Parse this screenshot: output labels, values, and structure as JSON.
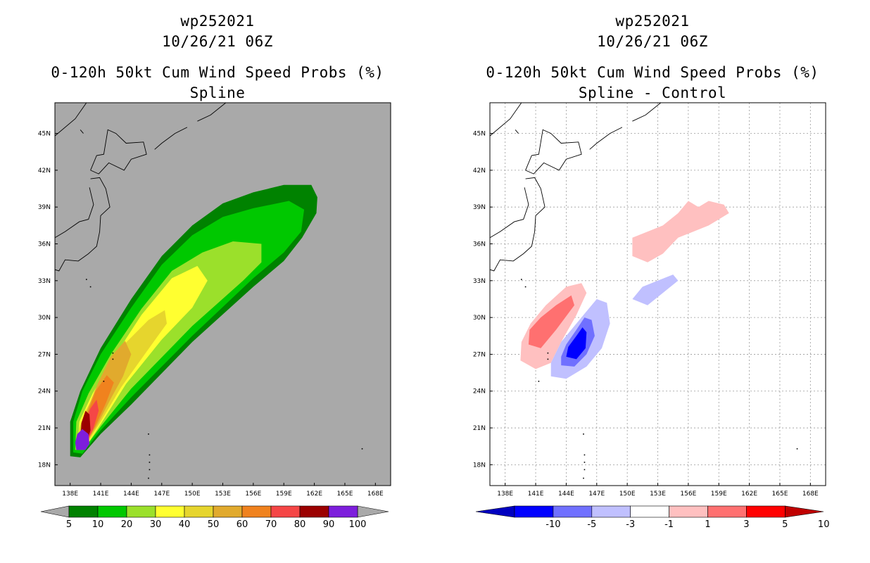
{
  "chart_data": [
    {
      "type": "heatmap",
      "storm_id": "wp252021",
      "datetime": "10/26/21 06Z",
      "title": "0-120h 50kt Cum Wind Speed Probs (%)",
      "subtitle": "Spline",
      "x_ticks": [
        "138E",
        "141E",
        "144E",
        "147E",
        "150E",
        "153E",
        "156E",
        "159E",
        "162E",
        "165E",
        "168E"
      ],
      "y_ticks": [
        "45N",
        "42N",
        "39N",
        "36N",
        "33N",
        "30N",
        "27N",
        "24N",
        "21N",
        "18N"
      ],
      "xlim": [
        136.5,
        169.5
      ],
      "ylim": [
        16.3,
        47.5
      ],
      "grid": false,
      "background": "#a9a9a9",
      "colorbar": {
        "labels": [
          "5",
          "10",
          "20",
          "30",
          "40",
          "50",
          "60",
          "70",
          "80",
          "90",
          "100"
        ],
        "colors": [
          "#008200",
          "#00c800",
          "#9be02b",
          "#ffff30",
          "#e6d52d",
          "#e1aa2d",
          "#f0821e",
          "#f54646",
          "#9b0000",
          "#7d1edc"
        ]
      },
      "levels": [
        {
          "threshold": 5,
          "color": "#008200",
          "points": [
            [
              138.0,
              18.7
            ],
            [
              139.0,
              18.6
            ],
            [
              141.0,
              20.5
            ],
            [
              144.0,
              22.9
            ],
            [
              150.0,
              28.0
            ],
            [
              156.0,
              32.5
            ],
            [
              159.0,
              34.6
            ],
            [
              160.8,
              36.5
            ],
            [
              162.2,
              38.5
            ],
            [
              162.3,
              39.8
            ],
            [
              161.7,
              40.8
            ],
            [
              159.0,
              40.8
            ],
            [
              156.0,
              40.2
            ],
            [
              153.0,
              39.3
            ],
            [
              150.0,
              37.5
            ],
            [
              147.0,
              35.0
            ],
            [
              144.0,
              31.5
            ],
            [
              141.0,
              27.5
            ],
            [
              139.0,
              24.0
            ],
            [
              138.0,
              21.5
            ]
          ]
        },
        {
          "threshold": 10,
          "color": "#00c800",
          "points": [
            [
              138.3,
              19.0
            ],
            [
              139.2,
              18.9
            ],
            [
              141.0,
              20.8
            ],
            [
              144.0,
              23.5
            ],
            [
              150.0,
              28.5
            ],
            [
              156.0,
              33.2
            ],
            [
              159.0,
              35.3
            ],
            [
              160.7,
              37.0
            ],
            [
              161.0,
              38.8
            ],
            [
              159.5,
              39.5
            ],
            [
              156.0,
              38.9
            ],
            [
              153.0,
              38.2
            ],
            [
              150.0,
              36.7
            ],
            [
              147.0,
              34.3
            ],
            [
              144.0,
              30.8
            ],
            [
              141.0,
              27.0
            ],
            [
              139.2,
              24.0
            ],
            [
              138.3,
              21.5
            ]
          ]
        },
        {
          "threshold": 20,
          "color": "#9be02b",
          "points": [
            [
              138.5,
              19.2
            ],
            [
              139.3,
              19.2
            ],
            [
              141.0,
              21.1
            ],
            [
              144.0,
              24.2
            ],
            [
              150.0,
              29.3
            ],
            [
              155.0,
              33.0
            ],
            [
              156.8,
              34.5
            ],
            [
              156.8,
              36.0
            ],
            [
              154.0,
              36.2
            ],
            [
              151.0,
              35.3
            ],
            [
              148.0,
              33.8
            ],
            [
              145.0,
              30.7
            ],
            [
              142.0,
              27.0
            ],
            [
              139.8,
              23.8
            ],
            [
              138.6,
              21.5
            ]
          ]
        },
        {
          "threshold": 30,
          "color": "#ffff30",
          "points": [
            [
              138.7,
              19.3
            ],
            [
              139.4,
              19.3
            ],
            [
              141.0,
              21.3
            ],
            [
              143.5,
              24.6
            ],
            [
              147.0,
              28.2
            ],
            [
              150.0,
              30.8
            ],
            [
              151.5,
              33.0
            ],
            [
              150.5,
              34.2
            ],
            [
              148.0,
              33.2
            ],
            [
              145.0,
              30.2
            ],
            [
              142.5,
              27.0
            ],
            [
              140.2,
              23.8
            ],
            [
              138.9,
              21.5
            ]
          ]
        },
        {
          "threshold": 40,
          "color": "#e6d52d",
          "points": [
            [
              138.8,
              19.4
            ],
            [
              139.4,
              19.4
            ],
            [
              141.0,
              21.5
            ],
            [
              143.0,
              24.3
            ],
            [
              145.5,
              27.2
            ],
            [
              147.5,
              29.5
            ],
            [
              147.3,
              30.6
            ],
            [
              145.7,
              29.8
            ],
            [
              143.3,
              27.8
            ],
            [
              141.2,
              25.0
            ],
            [
              139.6,
              22.5
            ],
            [
              138.9,
              21.0
            ]
          ]
        },
        {
          "threshold": 50,
          "color": "#e1aa2d",
          "points": [
            [
              138.9,
              19.5
            ],
            [
              139.4,
              19.5
            ],
            [
              140.7,
              21.3
            ],
            [
              142.0,
              23.4
            ],
            [
              143.2,
              25.2
            ],
            [
              144.0,
              27.0
            ],
            [
              143.4,
              28.1
            ],
            [
              142.0,
              26.8
            ],
            [
              140.7,
              24.6
            ],
            [
              139.6,
              22.3
            ],
            [
              139.0,
              20.8
            ]
          ]
        },
        {
          "threshold": 60,
          "color": "#f0821e",
          "points": [
            [
              139.0,
              19.5
            ],
            [
              139.4,
              19.5
            ],
            [
              140.5,
              21.2
            ],
            [
              141.5,
              23.0
            ],
            [
              142.3,
              24.7
            ],
            [
              141.6,
              25.3
            ],
            [
              140.5,
              24.0
            ],
            [
              139.7,
              22.2
            ],
            [
              139.1,
              20.6
            ]
          ]
        },
        {
          "threshold": 70,
          "color": "#f54646",
          "points": [
            [
              139.0,
              19.6
            ],
            [
              139.5,
              19.6
            ],
            [
              140.3,
              21.0
            ],
            [
              140.8,
              22.4
            ],
            [
              140.6,
              23.3
            ],
            [
              140.0,
              22.6
            ],
            [
              139.4,
              21.4
            ]
          ]
        },
        {
          "threshold": 80,
          "color": "#9b0000",
          "points": [
            [
              139.0,
              19.8
            ],
            [
              139.6,
              19.8
            ],
            [
              140.0,
              20.8
            ],
            [
              139.9,
              22.1
            ],
            [
              139.5,
              22.4
            ],
            [
              139.1,
              21.4
            ]
          ]
        },
        {
          "threshold": 100,
          "color": "#7d1edc",
          "points": [
            [
              138.6,
              19.2
            ],
            [
              139.5,
              19.2
            ],
            [
              139.9,
              19.7
            ],
            [
              139.8,
              20.5
            ],
            [
              139.2,
              20.9
            ],
            [
              138.7,
              20.5
            ],
            [
              138.5,
              19.8
            ]
          ]
        }
      ]
    },
    {
      "type": "heatmap",
      "storm_id": "wp252021",
      "datetime": "10/26/21 06Z",
      "title": "0-120h 50kt Cum Wind Speed Probs (%)",
      "subtitle": "Spline - Control",
      "x_ticks": [
        "138E",
        "141E",
        "144E",
        "147E",
        "150E",
        "153E",
        "156E",
        "159E",
        "162E",
        "165E",
        "168E"
      ],
      "y_ticks": [
        "45N",
        "42N",
        "39N",
        "36N",
        "33N",
        "30N",
        "27N",
        "24N",
        "21N",
        "18N"
      ],
      "xlim": [
        136.5,
        169.5
      ],
      "ylim": [
        16.3,
        47.5
      ],
      "grid": true,
      "background": "#ffffff",
      "colorbar": {
        "labels": [
          "-10",
          "-5",
          "-3",
          "-1",
          "1",
          "3",
          "5",
          "10"
        ],
        "colors": [
          "#0000c0",
          "#0000ff",
          "#7070ff",
          "#c0c0ff",
          "#ffffff",
          "#ffc0c0",
          "#ff7070",
          "#ff0000",
          "#c00000"
        ]
      },
      "levels": [
        {
          "threshold": 1,
          "color": "#ffc0c0",
          "points": [
            [
              139.5,
              26.5
            ],
            [
              141.0,
              25.8
            ],
            [
              142.5,
              26.3
            ],
            [
              143.5,
              28.0
            ],
            [
              145.0,
              30.2
            ],
            [
              146.0,
              32.0
            ],
            [
              145.5,
              32.8
            ],
            [
              144.0,
              32.5
            ],
            [
              142.0,
              31.0
            ],
            [
              140.5,
              29.5
            ],
            [
              139.6,
              28.0
            ]
          ]
        },
        {
          "threshold": 3,
          "color": "#ff7070",
          "points": [
            [
              140.3,
              27.8
            ],
            [
              141.5,
              27.5
            ],
            [
              143.0,
              29.0
            ],
            [
              144.8,
              31.0
            ],
            [
              144.5,
              31.8
            ],
            [
              143.0,
              31.0
            ],
            [
              141.5,
              30.0
            ],
            [
              140.4,
              29.0
            ]
          ]
        },
        {
          "threshold": 1,
          "color": "#ffc0c0",
          "points": [
            [
              150.5,
              35.0
            ],
            [
              152.0,
              34.5
            ],
            [
              153.5,
              35.2
            ],
            [
              155.0,
              36.5
            ],
            [
              156.5,
              37.0
            ],
            [
              158.0,
              37.5
            ],
            [
              160.0,
              38.5
            ],
            [
              159.5,
              39.2
            ],
            [
              158.0,
              39.5
            ],
            [
              157.0,
              39.0
            ],
            [
              156.0,
              39.5
            ],
            [
              155.0,
              38.5
            ],
            [
              153.5,
              37.5
            ],
            [
              152.0,
              37.0
            ],
            [
              150.5,
              36.5
            ]
          ]
        },
        {
          "threshold": -1,
          "color": "#c0c0ff",
          "points": [
            [
              142.5,
              25.2
            ],
            [
              144.0,
              25.0
            ],
            [
              146.0,
              26.0
            ],
            [
              147.5,
              27.5
            ],
            [
              148.3,
              29.5
            ],
            [
              148.0,
              31.2
            ],
            [
              147.0,
              31.5
            ],
            [
              146.0,
              30.5
            ],
            [
              145.0,
              29.5
            ],
            [
              143.5,
              28.0
            ],
            [
              142.5,
              26.3
            ]
          ]
        },
        {
          "threshold": -3,
          "color": "#7070ff",
          "points": [
            [
              143.5,
              26.1
            ],
            [
              144.8,
              26.0
            ],
            [
              146.0,
              27.0
            ],
            [
              146.8,
              28.5
            ],
            [
              146.5,
              29.8
            ],
            [
              145.8,
              30.0
            ],
            [
              145.0,
              29.0
            ],
            [
              144.0,
              27.8
            ],
            [
              143.5,
              26.8
            ]
          ]
        },
        {
          "threshold": -5,
          "color": "#0000ff",
          "points": [
            [
              144.0,
              26.8
            ],
            [
              145.0,
              26.6
            ],
            [
              145.9,
              27.5
            ],
            [
              146.0,
              28.8
            ],
            [
              145.6,
              29.2
            ],
            [
              145.0,
              28.5
            ],
            [
              144.2,
              27.6
            ]
          ]
        },
        {
          "threshold": -1,
          "color": "#c0c0ff",
          "points": [
            [
              150.5,
              31.5
            ],
            [
              152.0,
              31.0
            ],
            [
              153.5,
              32.0
            ],
            [
              155.0,
              33.0
            ],
            [
              154.5,
              33.5
            ],
            [
              153.0,
              33.0
            ],
            [
              151.5,
              32.5
            ]
          ]
        }
      ]
    }
  ]
}
